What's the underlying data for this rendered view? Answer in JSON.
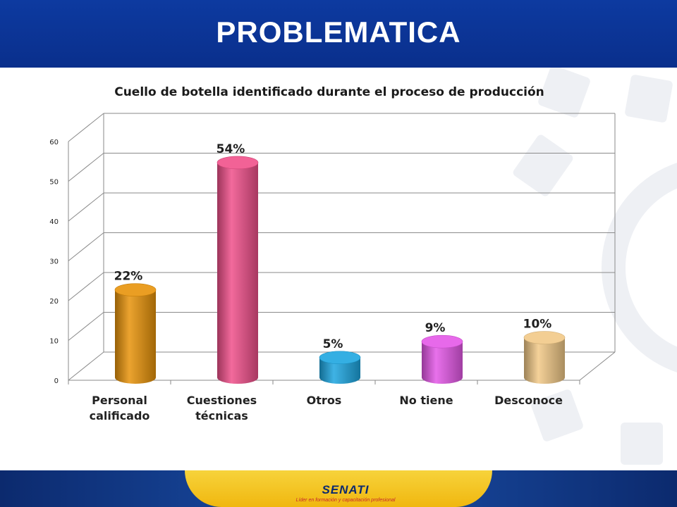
{
  "slide": {
    "title": "PROBLEMATICA",
    "footer_logo": "SENATI",
    "footer_tagline": "Líder en formación y capacitación profesional"
  },
  "colors": {
    "header": "#0a2f8c",
    "footer_band": "#f5c518",
    "gridline": "#8a8a8a"
  },
  "chart_data": {
    "type": "bar",
    "style": "3d-cylinder",
    "title": "Cuello de botella identificado durante el proceso de producción",
    "categories": [
      {
        "label": "Personal\ncalificado"
      },
      {
        "label": "Cuestiones\ntécnicas"
      },
      {
        "label": "Otros"
      },
      {
        "label": "No tiene"
      },
      {
        "label": "Desconoce"
      }
    ],
    "values": [
      22,
      54,
      5,
      9,
      10
    ],
    "data_labels": [
      "22%",
      "54%",
      "5%",
      "9%",
      "10%"
    ],
    "colors": [
      "#e8930a",
      "#f0508a",
      "#1da6e0",
      "#e458e8",
      "#f2c987"
    ],
    "yticks": [
      "0",
      "10",
      "20",
      "30",
      "40",
      "50",
      "60"
    ],
    "ylim": [
      0,
      60
    ],
    "grid": true,
    "legend": "none"
  }
}
